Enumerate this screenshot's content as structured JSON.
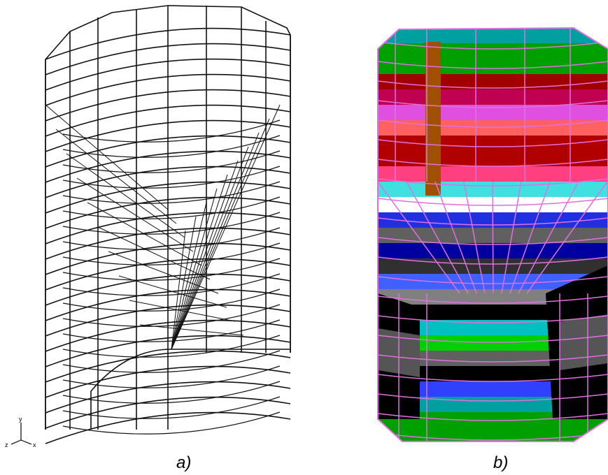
{
  "panels": [
    {
      "label": "a)"
    },
    {
      "label": "b)"
    }
  ],
  "axes_triad": {
    "y": "y",
    "x": "x",
    "z": "z"
  }
}
